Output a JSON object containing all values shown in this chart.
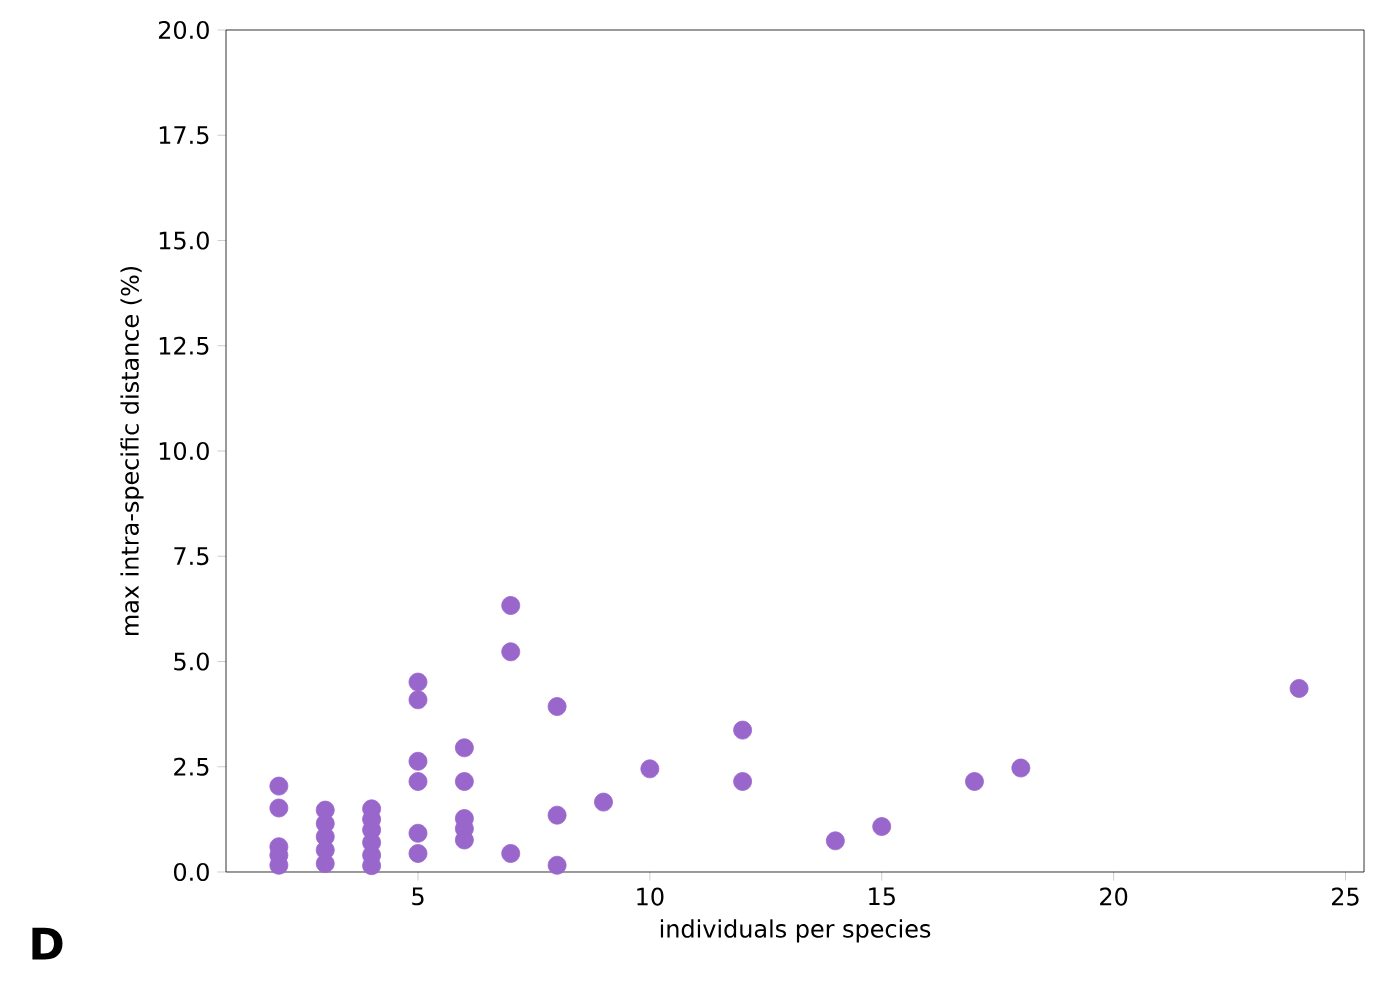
{
  "chart_data": {
    "type": "scatter",
    "xlabel": "individuals per species",
    "ylabel": "max intra-specific distance (%)",
    "annotations": [
      "D"
    ],
    "x": [
      2,
      2,
      2,
      2,
      2,
      3,
      3,
      3,
      3,
      3,
      4,
      4,
      4,
      4,
      4,
      4,
      5,
      5,
      5,
      5,
      5,
      5,
      6,
      6,
      6,
      6,
      6,
      7,
      7,
      7,
      8,
      8,
      8,
      9,
      10,
      12,
      12,
      14,
      15,
      17,
      18,
      24
    ],
    "values": [
      2.04,
      1.52,
      0.6,
      0.4,
      0.16,
      1.47,
      1.15,
      0.84,
      0.52,
      0.2,
      1.5,
      1.25,
      1.0,
      0.7,
      0.4,
      0.15,
      4.51,
      4.09,
      2.63,
      2.15,
      0.92,
      0.44,
      2.95,
      2.15,
      1.27,
      1.03,
      0.76,
      6.33,
      5.23,
      0.44,
      3.93,
      1.35,
      0.16,
      1.66,
      2.45,
      3.37,
      2.15,
      0.74,
      1.08,
      2.15,
      2.47,
      4.36
    ],
    "color": "#9966cc",
    "marker": "circle",
    "grid": false,
    "xlim": [
      0.86,
      25.4
    ],
    "ylim": [
      0,
      20
    ],
    "xticks": [
      5,
      10,
      15,
      20,
      25
    ],
    "yticks": [
      {
        "value": 0,
        "label": "0.0"
      },
      {
        "value": 2.5,
        "label": "2.5"
      },
      {
        "value": 5,
        "label": "5.0"
      },
      {
        "value": 7.5,
        "label": "7.5"
      },
      {
        "value": 10,
        "label": "10.0"
      },
      {
        "value": 12.5,
        "label": "12.5"
      },
      {
        "value": 15,
        "label": "15.0"
      },
      {
        "value": 17.5,
        "label": "17.5"
      },
      {
        "value": 20,
        "label": "20.0"
      }
    ]
  }
}
